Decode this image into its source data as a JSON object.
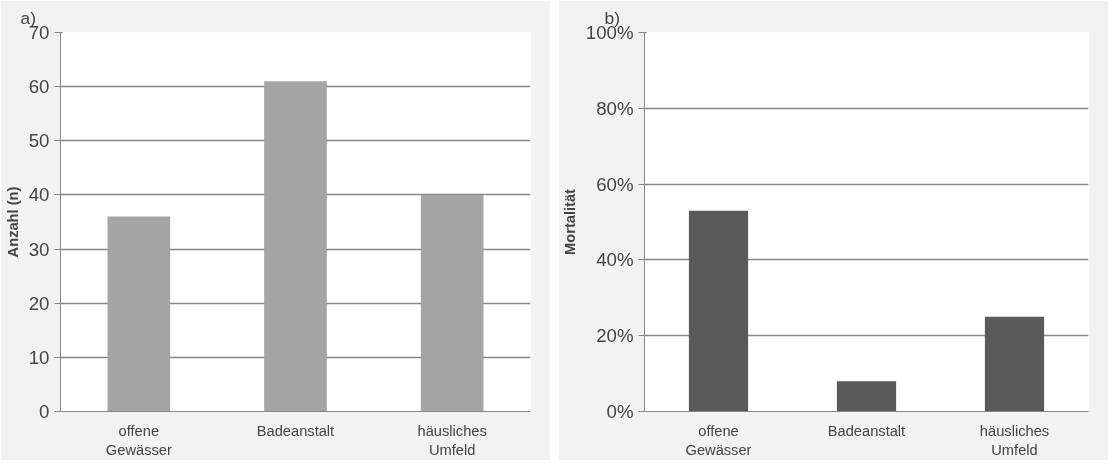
{
  "chart_data": [
    {
      "type": "bar",
      "title": "a)",
      "ylabel": "Anzahl (n)",
      "categories": [
        "offene\nGewässer",
        "Badeanstalt",
        "häusliches\nUmfeld"
      ],
      "values": [
        36,
        61,
        40
      ],
      "color": "#a5a5a5",
      "ylim": [
        0,
        70
      ],
      "yticks": [
        0,
        10,
        20,
        30,
        40,
        50,
        60,
        70
      ],
      "grid": "y"
    },
    {
      "type": "bar",
      "title": "b)",
      "ylabel": "Mortalität",
      "categories": [
        "offene\nGewässer",
        "Badeanstalt",
        "häusliches\nUmfeld"
      ],
      "values": [
        53,
        8,
        25
      ],
      "color": "#595959",
      "ylim": [
        0,
        100
      ],
      "yticks": [
        {
          "value": 0,
          "label": "0%"
        },
        {
          "value": 20,
          "label": "20%"
        },
        {
          "value": 40,
          "label": "40%"
        },
        {
          "value": 60,
          "label": "60%"
        },
        {
          "value": 80,
          "label": "80%"
        },
        {
          "value": 100,
          "label": "100%"
        }
      ],
      "grid": "y"
    }
  ]
}
